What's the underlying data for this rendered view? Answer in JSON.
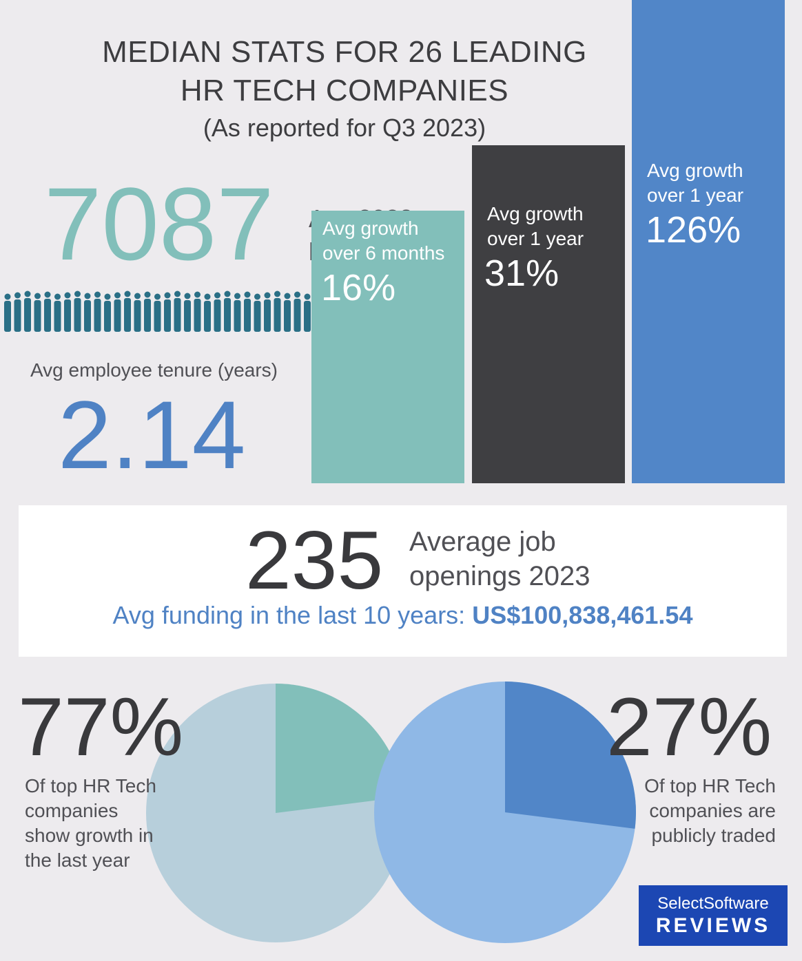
{
  "header": {
    "title_line1": "MEDIAN STATS FOR 26 LEADING",
    "title_line2": "HR TECH COMPANIES",
    "subtitle": "(As reported for Q3 2023)"
  },
  "headcount": {
    "value": "7087",
    "label_line1": "Avg 2023",
    "label_line2": "headcount",
    "people_icon": "people-row-icon"
  },
  "tenure": {
    "label": "Avg employee tenure (years)",
    "value": "2.14"
  },
  "chart_data": [
    {
      "type": "bar",
      "categories": [
        "Avg growth over 6 months",
        "Avg growth over 1 year",
        "Avg growth over 1 year"
      ],
      "values": [
        16,
        31,
        126
      ],
      "value_labels": [
        "16%",
        "31%",
        "126%"
      ],
      "label_lines": [
        [
          "Avg growth",
          "over 6 months"
        ],
        [
          "Avg growth",
          "over 1 year"
        ],
        [
          "Avg growth",
          "over 1 year"
        ]
      ],
      "colors": [
        "#82bfba",
        "#3f3f42",
        "#5186c8"
      ],
      "title": "",
      "xlabel": "",
      "ylabel": "",
      "grid": false
    },
    {
      "type": "pie",
      "values": [
        77,
        23
      ],
      "color_main": "#b7cfdb",
      "color_highlight": "#82bfba",
      "value_label": "77%",
      "label_lines": [
        "Of top HR Tech",
        "companies",
        "show growth in",
        "the last year"
      ]
    },
    {
      "type": "pie",
      "values": [
        27,
        73
      ],
      "color_main": "#8fb8e6",
      "color_highlight": "#5186c8",
      "value_label": "27%",
      "label_lines": [
        "Of top HR Tech",
        "companies are",
        "publicly traded"
      ]
    }
  ],
  "jobs": {
    "value": "235",
    "label_line1": "Average job",
    "label_line2": "openings 2023"
  },
  "funding": {
    "label": "Avg funding in the last 10 years:",
    "value": "US$100,838,461.54"
  },
  "logo": {
    "line1": "SelectSoftware",
    "line2": "REVIEWS"
  }
}
